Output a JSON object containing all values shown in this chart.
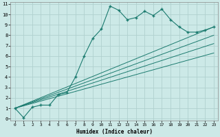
{
  "xlabel": "Humidex (Indice chaleur)",
  "bg_color": "#cce9e7",
  "grid_color": "#b0d0ce",
  "line_color": "#1a7a6e",
  "xlim": [
    -0.5,
    23.5
  ],
  "ylim": [
    -0.2,
    11.2
  ],
  "xticks": [
    0,
    1,
    2,
    3,
    4,
    5,
    6,
    7,
    8,
    9,
    10,
    11,
    12,
    13,
    14,
    15,
    16,
    17,
    18,
    19,
    20,
    21,
    22,
    23
  ],
  "yticks": [
    0,
    1,
    2,
    3,
    4,
    5,
    6,
    7,
    8,
    9,
    10,
    11
  ],
  "series1_x": [
    0,
    1,
    2,
    3,
    4,
    5,
    6,
    7,
    8,
    9,
    10,
    11,
    12,
    13,
    14,
    15,
    16,
    17,
    18,
    19,
    20,
    21,
    22,
    23
  ],
  "series1_y": [
    1.0,
    0.1,
    1.1,
    1.3,
    1.3,
    2.3,
    2.5,
    4.0,
    6.0,
    7.7,
    8.6,
    10.8,
    10.4,
    9.5,
    9.7,
    10.3,
    9.9,
    10.5,
    9.5,
    8.8,
    8.3,
    8.3,
    8.5,
    8.8
  ],
  "straight_lines": [
    {
      "x": [
        0,
        23
      ],
      "y": [
        1.0,
        8.8
      ]
    },
    {
      "x": [
        0,
        23
      ],
      "y": [
        1.0,
        8.0
      ]
    },
    {
      "x": [
        0,
        23
      ],
      "y": [
        1.0,
        7.2
      ]
    },
    {
      "x": [
        0,
        23
      ],
      "y": [
        1.0,
        6.3
      ]
    }
  ]
}
